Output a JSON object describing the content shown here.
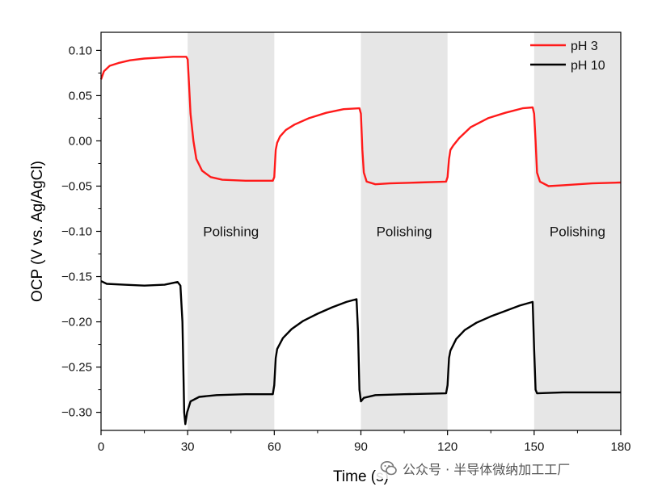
{
  "chart_data": {
    "type": "line",
    "title": "",
    "xlabel": "Time (s)",
    "ylabel": "OCP (V vs. Ag/AgCl)",
    "xlim": [
      0,
      180
    ],
    "ylim": [
      -0.32,
      0.12
    ],
    "xticks": [
      0,
      30,
      60,
      90,
      120,
      150,
      180
    ],
    "yticks": [
      0.1,
      0.05,
      0.0,
      -0.05,
      -0.1,
      -0.15,
      -0.2,
      -0.25,
      -0.3
    ],
    "ytick_labels": [
      "0.10",
      "0.05",
      "0.00",
      "−0.05",
      "−0.10",
      "−0.15",
      "−0.20",
      "−0.25",
      "−0.30"
    ],
    "shaded_regions": [
      {
        "x0": 30,
        "x1": 60,
        "label": "Polishing"
      },
      {
        "x0": 90,
        "x1": 120,
        "label": "Polishing"
      },
      {
        "x0": 150,
        "x1": 180,
        "label": "Polishing"
      }
    ],
    "legend_position": "top-right",
    "series": [
      {
        "name": "pH 3",
        "color": "#ff1a1a",
        "points": [
          [
            0,
            0.068
          ],
          [
            1,
            0.077
          ],
          [
            3,
            0.083
          ],
          [
            6,
            0.086
          ],
          [
            10,
            0.089
          ],
          [
            15,
            0.091
          ],
          [
            20,
            0.092
          ],
          [
            25,
            0.093
          ],
          [
            29.5,
            0.093
          ],
          [
            30,
            0.09
          ],
          [
            30.5,
            0.06
          ],
          [
            31,
            0.03
          ],
          [
            32,
            0.0
          ],
          [
            33,
            -0.02
          ],
          [
            35,
            -0.033
          ],
          [
            38,
            -0.04
          ],
          [
            42,
            -0.043
          ],
          [
            50,
            -0.044
          ],
          [
            59.5,
            -0.044
          ],
          [
            60,
            -0.04
          ],
          [
            60.5,
            -0.01
          ],
          [
            61,
            -0.002
          ],
          [
            62,
            0.005
          ],
          [
            64,
            0.012
          ],
          [
            67,
            0.018
          ],
          [
            72,
            0.025
          ],
          [
            78,
            0.031
          ],
          [
            84,
            0.035
          ],
          [
            89.5,
            0.036
          ],
          [
            90,
            0.03
          ],
          [
            90.5,
            -0.01
          ],
          [
            91,
            -0.035
          ],
          [
            92,
            -0.045
          ],
          [
            95,
            -0.048
          ],
          [
            100,
            -0.047
          ],
          [
            110,
            -0.046
          ],
          [
            119.5,
            -0.045
          ],
          [
            120,
            -0.04
          ],
          [
            120.5,
            -0.02
          ],
          [
            121,
            -0.01
          ],
          [
            122,
            -0.005
          ],
          [
            124,
            0.003
          ],
          [
            128,
            0.015
          ],
          [
            134,
            0.025
          ],
          [
            140,
            0.031
          ],
          [
            146,
            0.036
          ],
          [
            149.5,
            0.037
          ],
          [
            150,
            0.03
          ],
          [
            150.5,
            0.0
          ],
          [
            151,
            -0.035
          ],
          [
            152,
            -0.045
          ],
          [
            155,
            -0.05
          ],
          [
            160,
            -0.049
          ],
          [
            170,
            -0.047
          ],
          [
            180,
            -0.046
          ]
        ]
      },
      {
        "name": "pH 10",
        "color": "#000000",
        "points": [
          [
            0,
            -0.155
          ],
          [
            2,
            -0.158
          ],
          [
            8,
            -0.159
          ],
          [
            15,
            -0.16
          ],
          [
            22,
            -0.159
          ],
          [
            26.5,
            -0.156
          ],
          [
            27.5,
            -0.16
          ],
          [
            28.2,
            -0.2
          ],
          [
            28.8,
            -0.3
          ],
          [
            29.2,
            -0.313
          ],
          [
            29.8,
            -0.3
          ],
          [
            31,
            -0.288
          ],
          [
            34,
            -0.283
          ],
          [
            40,
            -0.281
          ],
          [
            50,
            -0.28
          ],
          [
            59.5,
            -0.28
          ],
          [
            60,
            -0.27
          ],
          [
            60.5,
            -0.24
          ],
          [
            61,
            -0.23
          ],
          [
            63,
            -0.218
          ],
          [
            66,
            -0.208
          ],
          [
            70,
            -0.199
          ],
          [
            75,
            -0.191
          ],
          [
            80,
            -0.184
          ],
          [
            85,
            -0.178
          ],
          [
            88.5,
            -0.175
          ],
          [
            89,
            -0.21
          ],
          [
            89.5,
            -0.275
          ],
          [
            90,
            -0.288
          ],
          [
            91,
            -0.284
          ],
          [
            95,
            -0.281
          ],
          [
            105,
            -0.28
          ],
          [
            119.5,
            -0.279
          ],
          [
            120,
            -0.27
          ],
          [
            120.5,
            -0.24
          ],
          [
            121,
            -0.232
          ],
          [
            123,
            -0.219
          ],
          [
            126,
            -0.209
          ],
          [
            130,
            -0.201
          ],
          [
            135,
            -0.194
          ],
          [
            140,
            -0.188
          ],
          [
            145,
            -0.182
          ],
          [
            149.5,
            -0.178
          ],
          [
            150,
            -0.23
          ],
          [
            150.5,
            -0.275
          ],
          [
            151,
            -0.279
          ],
          [
            160,
            -0.278
          ],
          [
            180,
            -0.278
          ]
        ]
      }
    ]
  },
  "watermark": {
    "text": "公众号 · 半导体微纳加工工厂",
    "icon": "wechat-icon"
  }
}
